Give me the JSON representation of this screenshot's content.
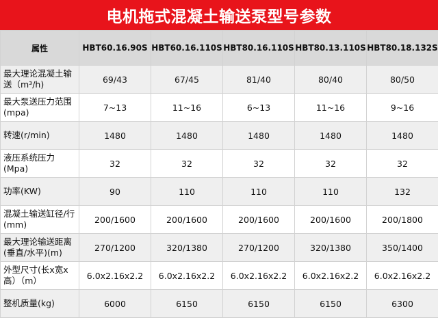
{
  "title": "电机拖式混凝土输送泵型号参数",
  "table": {
    "headers": [
      "属性",
      "HBT60.16.90S",
      "HBT60.16.110S",
      "HBT80.16.110S",
      "HBT80.13.110S",
      "HBT80.18.132S"
    ],
    "rows": [
      {
        "label": "最大理论混凝土输送（m³/h)",
        "values": [
          "69/43",
          "67/45",
          "81/40",
          "80/40",
          "80/50"
        ]
      },
      {
        "label": "最大泵送压力范围(mpa)",
        "values": [
          "7~13",
          "11~16",
          "6~13",
          "11~16",
          "9~16"
        ]
      },
      {
        "label": "转速(r/min)",
        "values": [
          "1480",
          "1480",
          "1480",
          "1480",
          "1480"
        ]
      },
      {
        "label": "液压系统压力(Mpa)",
        "values": [
          "32",
          "32",
          "32",
          "32",
          "32"
        ]
      },
      {
        "label": "功率(KW)",
        "values": [
          "90",
          "110",
          "110",
          "110",
          "132"
        ]
      },
      {
        "label": "混凝土输送缸径/行(mm)",
        "values": [
          "200/1600",
          "200/1600",
          "200/1600",
          "200/1600",
          "200/1800"
        ]
      },
      {
        "label": "最大理论输送距离(垂直/水平)(m)",
        "values": [
          "270/1200",
          "320/1380",
          "270/1200",
          "320/1380",
          "350/1400"
        ]
      },
      {
        "label": "外型尺寸(长x宽x高）（m）",
        "values": [
          "6.0x2.16x2.2",
          "6.0x2.16x2.2",
          "6.0x2.16x2.2",
          "6.0x2.16x2.2",
          "6.0x2.16x2.2"
        ]
      },
      {
        "label": "整机质量(kg)",
        "values": [
          "6000",
          "6150",
          "6150",
          "6150",
          "6300"
        ]
      }
    ]
  },
  "colors": {
    "title_bg": "#e8141b",
    "header_bg": "#d9d9d9",
    "row_alt_bg": "#efefef",
    "border": "#d2d2d2"
  }
}
